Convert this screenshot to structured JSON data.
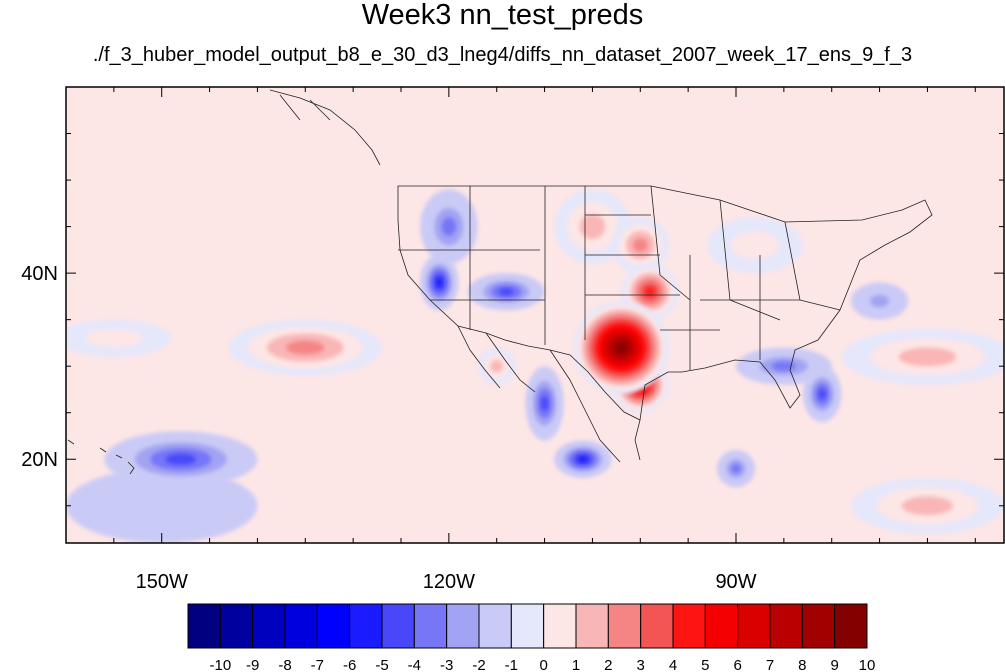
{
  "title": "Week3 nn_test_preds",
  "subtitle": "./f_3_huber_model_output_b8_e_30_d3_lneg4/diffs_nn_dataset_2007_week_17_ens_9_f_3",
  "map": {
    "lon_range": [
      -160,
      -62
    ],
    "lat_range": [
      11,
      60
    ],
    "x_ticks": [
      {
        "lon": -150,
        "label": "150W"
      },
      {
        "lon": -120,
        "label": "120W"
      },
      {
        "lon": -90,
        "label": "90W"
      }
    ],
    "y_ticks": [
      {
        "lat": 40,
        "label": "40N"
      },
      {
        "lat": 20,
        "label": "20N"
      }
    ],
    "features": [
      {
        "lon": -102,
        "lat": 32,
        "value": 10,
        "rx": 5,
        "ry": 5
      },
      {
        "lon": -100,
        "lat": 28,
        "value": 7,
        "rx": 3,
        "ry": 3
      },
      {
        "lon": -99,
        "lat": 38,
        "value": 5,
        "rx": 3,
        "ry": 3
      },
      {
        "lon": -100,
        "lat": 43,
        "value": 3,
        "rx": 3,
        "ry": 3
      },
      {
        "lon": -105,
        "lat": 45,
        "value": 2,
        "rx": 4,
        "ry": 4
      },
      {
        "lon": -135,
        "lat": 32,
        "value": 3,
        "rx": 8,
        "ry": 3
      },
      {
        "lon": -155,
        "lat": 33,
        "value": 1,
        "rx": 6,
        "ry": 2
      },
      {
        "lon": -115,
        "lat": 30,
        "value": 2,
        "rx": 2,
        "ry": 2
      },
      {
        "lon": -70,
        "lat": 31,
        "value": 2,
        "rx": 9,
        "ry": 3
      },
      {
        "lon": -70,
        "lat": 15,
        "value": 2,
        "rx": 8,
        "ry": 3
      },
      {
        "lon": -88,
        "lat": 43,
        "value": 1,
        "rx": 5,
        "ry": 3
      },
      {
        "lon": -114,
        "lat": 38,
        "value": -4,
        "rx": 4,
        "ry": 2
      },
      {
        "lon": -121,
        "lat": 39,
        "value": -5,
        "rx": 2,
        "ry": 3
      },
      {
        "lon": -120,
        "lat": 45,
        "value": -3,
        "rx": 3,
        "ry": 4
      },
      {
        "lon": -110,
        "lat": 26,
        "value": -4,
        "rx": 2,
        "ry": 4
      },
      {
        "lon": -106,
        "lat": 20,
        "value": -5,
        "rx": 3,
        "ry": 2
      },
      {
        "lon": -85,
        "lat": 30,
        "value": -3,
        "rx": 5,
        "ry": 2
      },
      {
        "lon": -81,
        "lat": 27,
        "value": -4,
        "rx": 2,
        "ry": 3
      },
      {
        "lon": -148,
        "lat": 20,
        "value": -4,
        "rx": 8,
        "ry": 3
      },
      {
        "lon": -90,
        "lat": 19,
        "value": -3,
        "rx": 2,
        "ry": 2
      },
      {
        "lon": -75,
        "lat": 37,
        "value": -2,
        "rx": 3,
        "ry": 2
      },
      {
        "lon": -150,
        "lat": 15,
        "value": -1,
        "rx": 10,
        "ry": 4
      }
    ]
  },
  "colorbar": {
    "labels": [
      "-10",
      "-9",
      "-8",
      "-7",
      "-6",
      "-5",
      "-4",
      "-3",
      "-2",
      "-1",
      "0",
      "1",
      "2",
      "3",
      "4",
      "5",
      "6",
      "7",
      "8",
      "9",
      "10"
    ],
    "colors": [
      "#000080",
      "#00009f",
      "#0000bf",
      "#0000df",
      "#0000ff",
      "#1b1bff",
      "#4848fa",
      "#7676f7",
      "#a3a3f3",
      "#cacaf6",
      "#e5e7fb",
      "#fde6e6",
      "#f9b6b6",
      "#f58585",
      "#f35454",
      "#ff1414",
      "#f50000",
      "#db0000",
      "#bb0000",
      "#a00000",
      "#840000"
    ]
  }
}
